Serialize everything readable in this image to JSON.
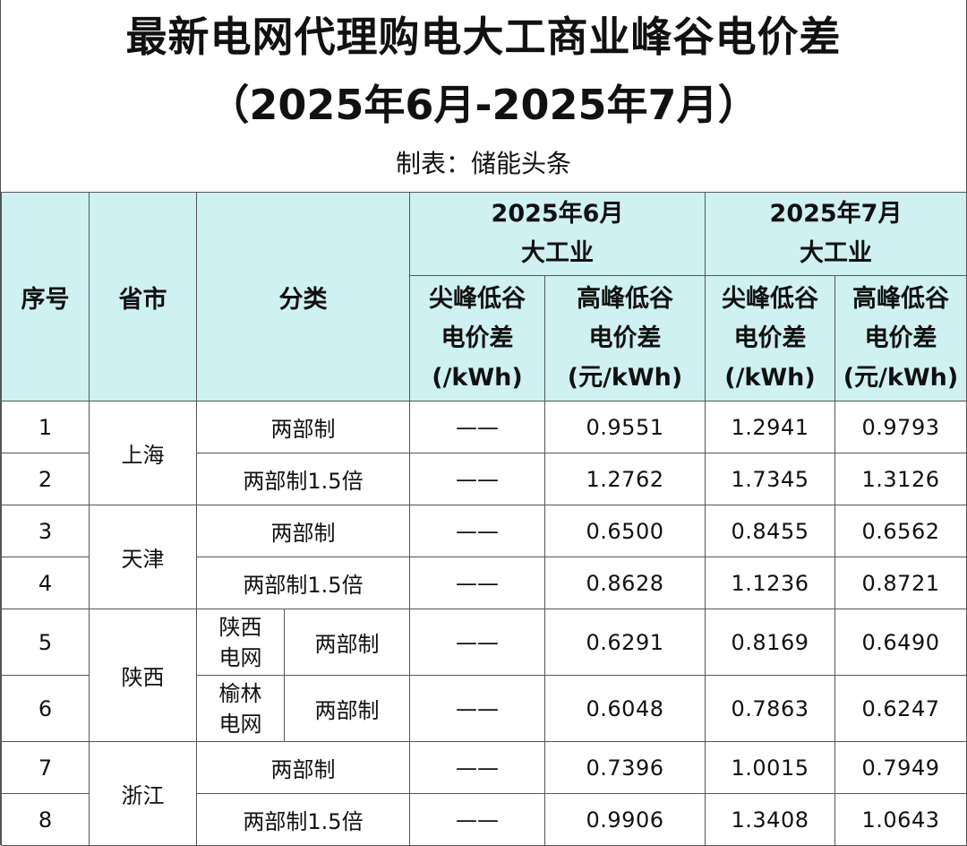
{
  "title": {
    "line1": "最新电网代理购电大工商业峰谷电价差",
    "line2": "（2025年6月-2025年7月）",
    "maker": "制表：储能头条"
  },
  "header": {
    "seq": "序号",
    "region": "省市",
    "category": "分类",
    "june": {
      "line1": "2025年6月",
      "line2": "大工业"
    },
    "july": {
      "line1": "2025年7月",
      "line2": "大工业"
    },
    "col_sharp": [
      "尖峰低谷",
      "电价差",
      "(/kWh)"
    ],
    "col_high": [
      "高峰低谷",
      "电价差",
      "(元/kWh)"
    ]
  },
  "rows": [
    {
      "seq": "1",
      "region": "上海",
      "category": "两部制",
      "jun_sharp": "——",
      "jun_high": "0.9551",
      "jul_sharp": "1.2941",
      "jul_high": "0.9793"
    },
    {
      "seq": "2",
      "region": "上海",
      "category": "两部制1.5倍",
      "jun_sharp": "——",
      "jun_high": "1.2762",
      "jul_sharp": "1.7345",
      "jul_high": "1.3126"
    },
    {
      "seq": "3",
      "region": "天津",
      "category": "两部制",
      "jun_sharp": "——",
      "jun_high": "0.6500",
      "jul_sharp": "0.8455",
      "jul_high": "0.6562"
    },
    {
      "seq": "4",
      "region": "天津",
      "category": "两部制1.5倍",
      "jun_sharp": "——",
      "jun_high": "0.8628",
      "jul_sharp": "1.1236",
      "jul_high": "0.8721"
    },
    {
      "seq": "5",
      "region": "陕西",
      "grid": [
        "陕西",
        "电网"
      ],
      "category": "两部制",
      "jun_sharp": "——",
      "jun_high": "0.6291",
      "jul_sharp": "0.8169",
      "jul_high": "0.6490"
    },
    {
      "seq": "6",
      "region": "陕西",
      "grid": [
        "榆林",
        "电网"
      ],
      "category": "两部制",
      "jun_sharp": "——",
      "jun_high": "0.6048",
      "jul_sharp": "0.7863",
      "jul_high": "0.6247"
    },
    {
      "seq": "7",
      "region": "浙江",
      "category": "两部制",
      "jun_sharp": "——",
      "jun_high": "0.7396",
      "jul_sharp": "1.0015",
      "jul_high": "0.7949"
    },
    {
      "seq": "8",
      "region": "浙江",
      "category": "两部制1.5倍",
      "jun_sharp": "——",
      "jun_high": "0.9906",
      "jul_sharp": "1.3408",
      "jul_high": "1.0643"
    }
  ],
  "colors": {
    "header_bg": "#cff1f1",
    "border": "#555555"
  }
}
